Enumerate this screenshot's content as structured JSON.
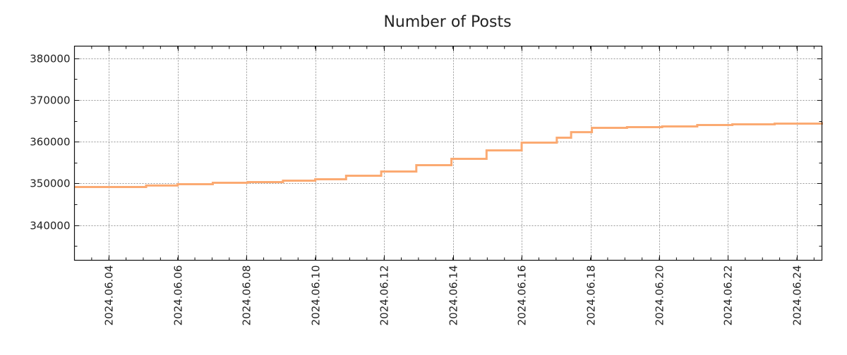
{
  "chart_data": {
    "type": "line",
    "title": "Number of Posts",
    "xlabel": "",
    "ylabel": "",
    "grid": true,
    "legend": null,
    "ylim": [
      331600,
      382900
    ],
    "xlim": [
      "2024-06-03T00:00",
      "2024-06-24T17:30"
    ],
    "yticks": [
      340000,
      350000,
      360000,
      370000,
      380000
    ],
    "ytick_labels": [
      "340000",
      "350000",
      "360000",
      "370000",
      "380000"
    ],
    "xticks": [
      "2024-06-04",
      "2024-06-06",
      "2024-06-08",
      "2024-06-10",
      "2024-06-12",
      "2024-06-14",
      "2024-06-16",
      "2024-06-18",
      "2024-06-20",
      "2024-06-22",
      "2024-06-24"
    ],
    "xtick_labels": [
      "2024.06.04",
      "2024.06.06",
      "2024.06.08",
      "2024.06.10",
      "2024.06.12",
      "2024.06.14",
      "2024.06.16",
      "2024.06.18",
      "2024.06.20",
      "2024.06.22",
      "2024.06.24"
    ],
    "series": [
      {
        "name": "Number of Posts",
        "color": "#fbaa72",
        "x": [
          "2024-06-03T00:00",
          "2024-06-04T01:30",
          "2024-06-05T02:00",
          "2024-06-06T00:00",
          "2024-06-07T00:30",
          "2024-06-08T01:00",
          "2024-06-09T01:30",
          "2024-06-10T00:00",
          "2024-06-10T21:30",
          "2024-06-11T22:00",
          "2024-06-12T22:30",
          "2024-06-13T23:00",
          "2024-06-14T23:30",
          "2024-06-16T00:00",
          "2024-06-17T00:30",
          "2024-06-17T10:30",
          "2024-06-18T01:00",
          "2024-06-19T01:30",
          "2024-06-20T02:00",
          "2024-06-21T02:30",
          "2024-06-22T03:00",
          "2024-06-23T08:30",
          "2024-06-24T17:30"
        ],
        "y": [
          349160,
          349160,
          349500,
          349830,
          350170,
          350340,
          350670,
          351000,
          351850,
          352870,
          354380,
          355900,
          357930,
          359780,
          360960,
          362300,
          363320,
          363490,
          363660,
          364000,
          364170,
          364330,
          364670
        ]
      }
    ]
  }
}
